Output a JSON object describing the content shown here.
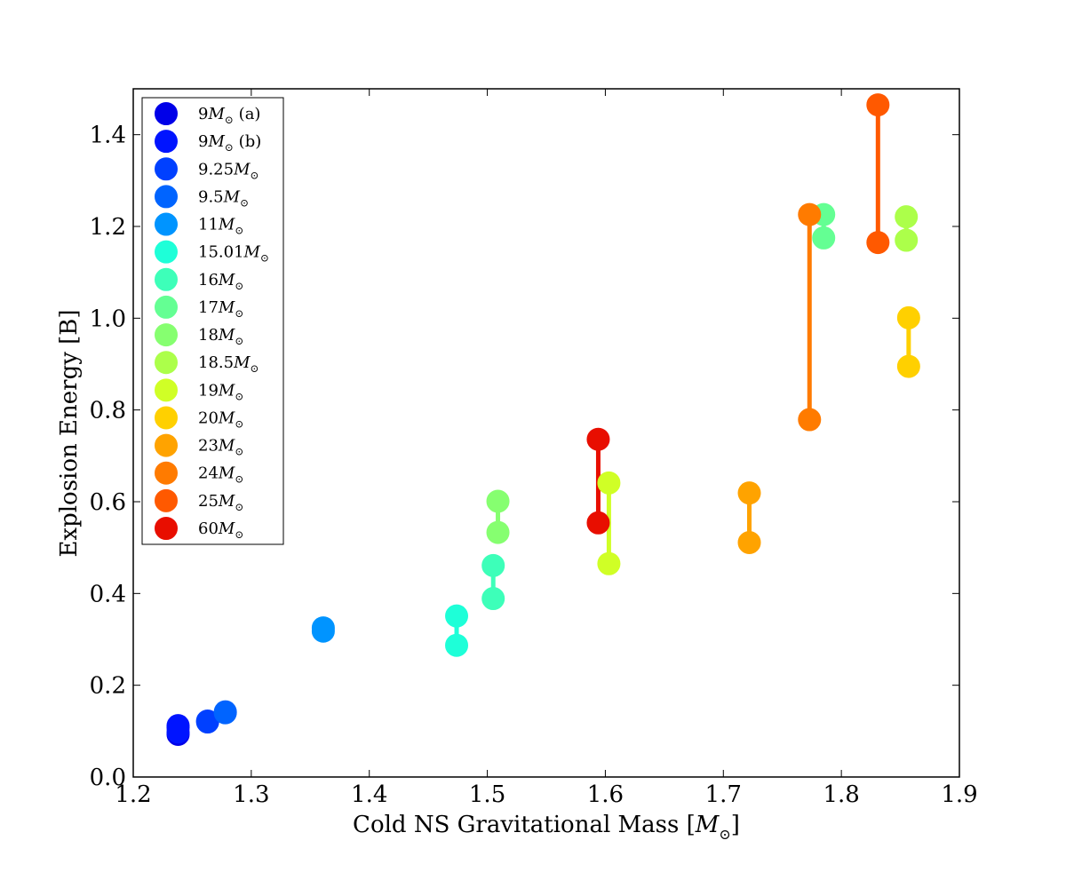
{
  "chart_data": {
    "type": "scatter",
    "title": "",
    "xlabel": "Cold NS Gravitational Mass [",
    "xlabel_symbol": "M",
    "xlabel_subscript": "⊙",
    "xlabel_close": "]",
    "ylabel": "Explosion Energy [B]",
    "xlim": [
      1.2,
      1.9
    ],
    "ylim": [
      0.0,
      1.5
    ],
    "xticks": [
      1.2,
      1.3,
      1.4,
      1.5,
      1.6,
      1.7,
      1.8,
      1.9
    ],
    "xtick_labels": [
      "1.2",
      "1.3",
      "1.4",
      "1.5",
      "1.6",
      "1.7",
      "1.8",
      "1.9"
    ],
    "yticks": [
      0.0,
      0.2,
      0.4,
      0.6,
      0.8,
      1.0,
      1.2,
      1.4
    ],
    "ytick_labels": [
      "0.0",
      "0.2",
      "0.4",
      "0.6",
      "0.8",
      "1.0",
      "1.2",
      "1.4"
    ],
    "grid": false,
    "legend_position": "top-left",
    "series": [
      {
        "name": "9",
        "suffix": " (a)",
        "color": "#0000e8",
        "points": [
          [
            1.238,
            0.108
          ],
          [
            1.238,
            0.093
          ]
        ]
      },
      {
        "name": "9",
        "suffix": " (b)",
        "color": "#0014ff",
        "points": [
          [
            1.238,
            0.112
          ],
          [
            1.238,
            0.098
          ]
        ]
      },
      {
        "name": "9.25",
        "suffix": "",
        "color": "#0040ff",
        "points": [
          [
            1.263,
            0.122
          ],
          [
            1.263,
            0.12
          ]
        ]
      },
      {
        "name": "9.5",
        "suffix": "",
        "color": "#0064ff",
        "points": [
          [
            1.278,
            0.142
          ],
          [
            1.278,
            0.14
          ]
        ]
      },
      {
        "name": "11",
        "suffix": "",
        "color": "#0094ff",
        "points": [
          [
            1.361,
            0.325
          ],
          [
            1.361,
            0.318
          ]
        ]
      },
      {
        "name": "15.01",
        "suffix": "",
        "color": "#1effd8",
        "points": [
          [
            1.474,
            0.351
          ],
          [
            1.474,
            0.287
          ]
        ]
      },
      {
        "name": "16",
        "suffix": "",
        "color": "#3dffb9",
        "points": [
          [
            1.505,
            0.461
          ],
          [
            1.505,
            0.389
          ]
        ]
      },
      {
        "name": "17",
        "suffix": "",
        "color": "#64ff93",
        "points": [
          [
            1.785,
            1.226
          ],
          [
            1.785,
            1.175
          ]
        ]
      },
      {
        "name": "18",
        "suffix": "",
        "color": "#86ff70",
        "points": [
          [
            1.509,
            0.601
          ],
          [
            1.509,
            0.533
          ]
        ]
      },
      {
        "name": "18.5",
        "suffix": "",
        "color": "#acff4a",
        "points": [
          [
            1.855,
            1.221
          ],
          [
            1.855,
            1.17
          ]
        ]
      },
      {
        "name": "19",
        "suffix": "",
        "color": "#d0ff26",
        "points": [
          [
            1.603,
            0.641
          ],
          [
            1.603,
            0.465
          ]
        ]
      },
      {
        "name": "20",
        "suffix": "",
        "color": "#ffd000",
        "points": [
          [
            1.857,
            1.001
          ],
          [
            1.857,
            0.895
          ]
        ]
      },
      {
        "name": "23",
        "suffix": "",
        "color": "#ffa300",
        "points": [
          [
            1.722,
            0.619
          ],
          [
            1.722,
            0.511
          ]
        ]
      },
      {
        "name": "24",
        "suffix": "",
        "color": "#ff7b00",
        "points": [
          [
            1.773,
            1.226
          ],
          [
            1.773,
            0.779
          ]
        ]
      },
      {
        "name": "25",
        "suffix": "",
        "color": "#ff5900",
        "points": [
          [
            1.831,
            1.465
          ],
          [
            1.831,
            1.165
          ]
        ]
      },
      {
        "name": "60",
        "suffix": "",
        "color": "#e80e00",
        "points": [
          [
            1.594,
            0.736
          ],
          [
            1.594,
            0.554
          ]
        ]
      }
    ],
    "legend_symbol": "M",
    "legend_subscript": "⊙"
  }
}
